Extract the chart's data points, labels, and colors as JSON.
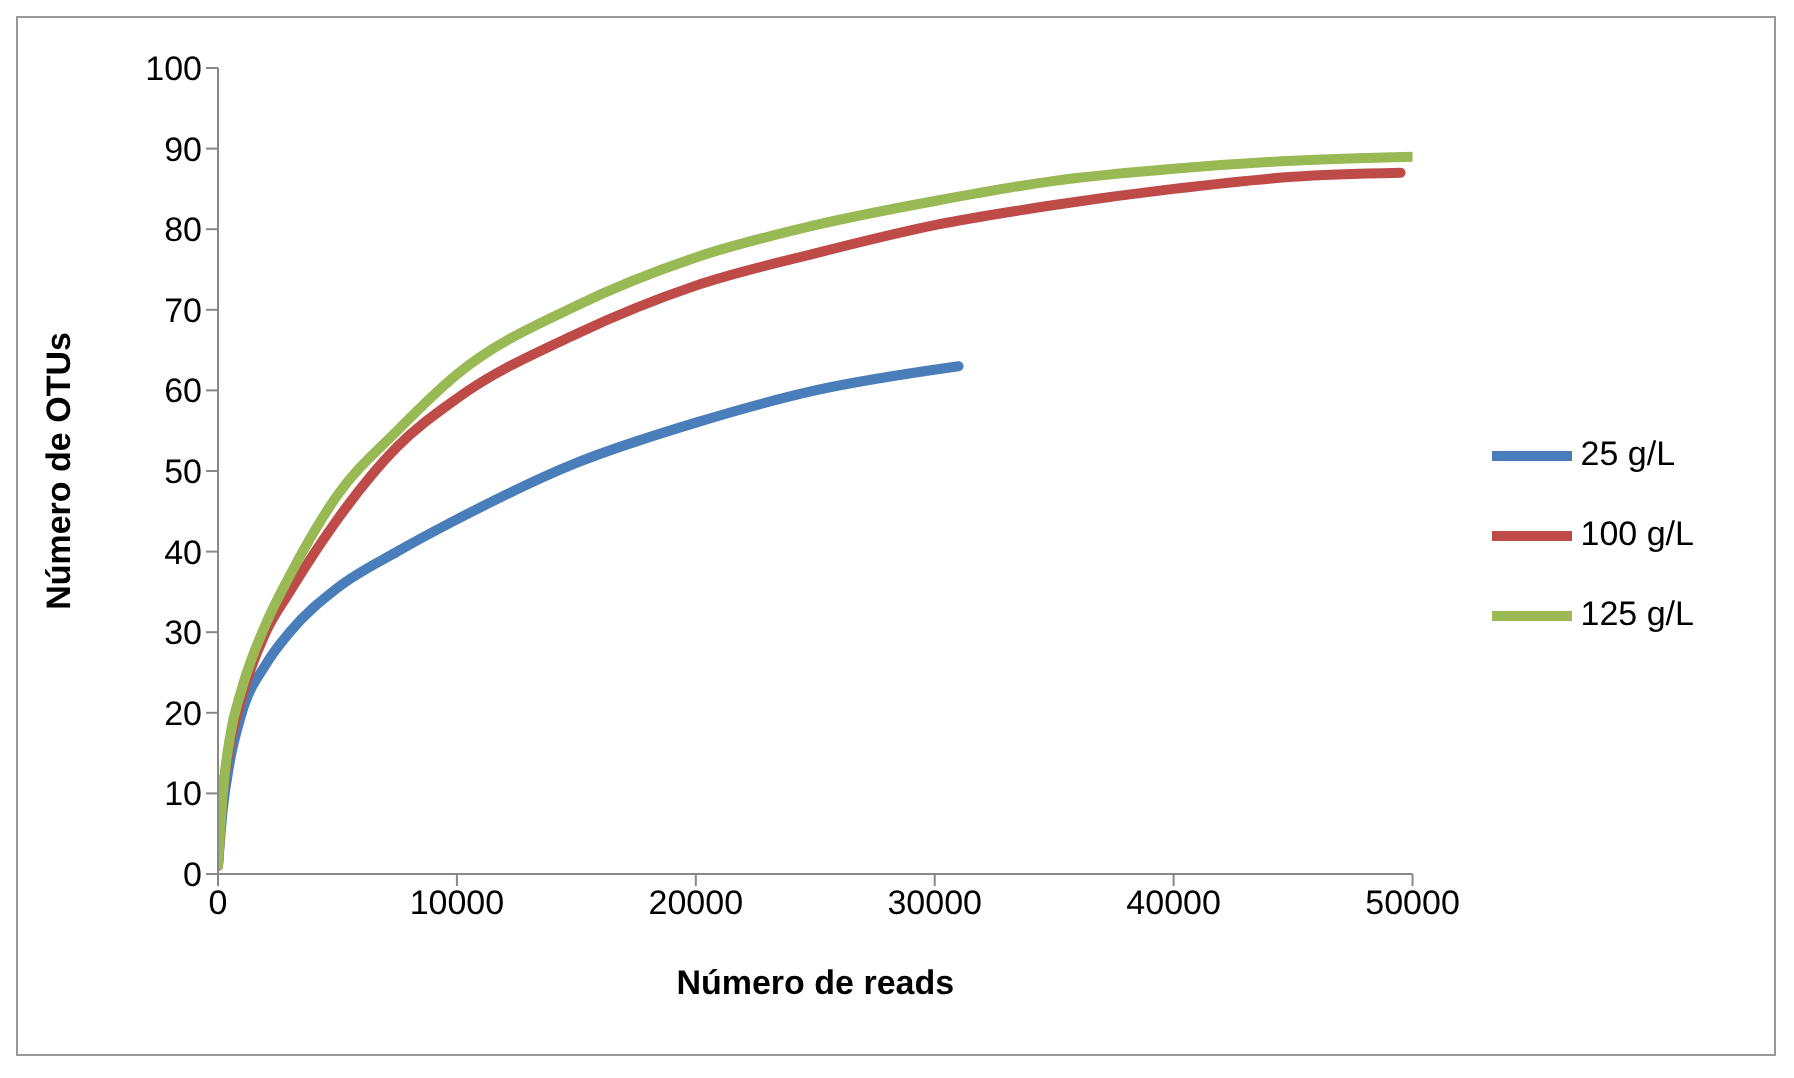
{
  "chart_data": {
    "type": "line",
    "xlabel": "Número de reads",
    "ylabel": "Número de OTUs",
    "xlim": [
      0,
      50000
    ],
    "xticks": [
      0,
      10000,
      20000,
      30000,
      40000,
      50000
    ],
    "ylim": [
      0,
      100
    ],
    "yticks": [
      0,
      10,
      20,
      30,
      40,
      50,
      60,
      70,
      80,
      90,
      100
    ],
    "grid": false,
    "legend": "right",
    "marker": "none",
    "line_style": "solid",
    "series": [
      {
        "name": "25 g/L",
        "color": "#4a7ebb",
        "x": [
          0,
          200,
          500,
          1000,
          2000,
          3000,
          5000,
          7500,
          10000,
          15000,
          20000,
          25000,
          31000
        ],
        "values": [
          1,
          8,
          14,
          20,
          26,
          30,
          35.5,
          40,
          44,
          51,
          56,
          60,
          63
        ]
      },
      {
        "name": "100 g/L",
        "color": "#be4b48",
        "x": [
          0,
          200,
          500,
          1000,
          2000,
          3000,
          5000,
          7500,
          10000,
          15000,
          20000,
          25000,
          30000,
          35000,
          40000,
          45000,
          49500
        ],
        "values": [
          1,
          10,
          16,
          22,
          30,
          35,
          44,
          53,
          59,
          67,
          73,
          77,
          80.5,
          83,
          85,
          86.5,
          87
        ]
      },
      {
        "name": "125 g/L",
        "color": "#98b954",
        "x": [
          0,
          200,
          500,
          1000,
          2000,
          3000,
          5000,
          7500,
          10000,
          15000,
          20000,
          25000,
          30000,
          35000,
          40000,
          45000,
          50000
        ],
        "values": [
          1,
          10,
          17,
          23,
          31,
          37,
          47,
          55,
          62,
          70.5,
          76.5,
          80.5,
          83.5,
          86,
          87.5,
          88.5,
          89
        ]
      }
    ]
  }
}
